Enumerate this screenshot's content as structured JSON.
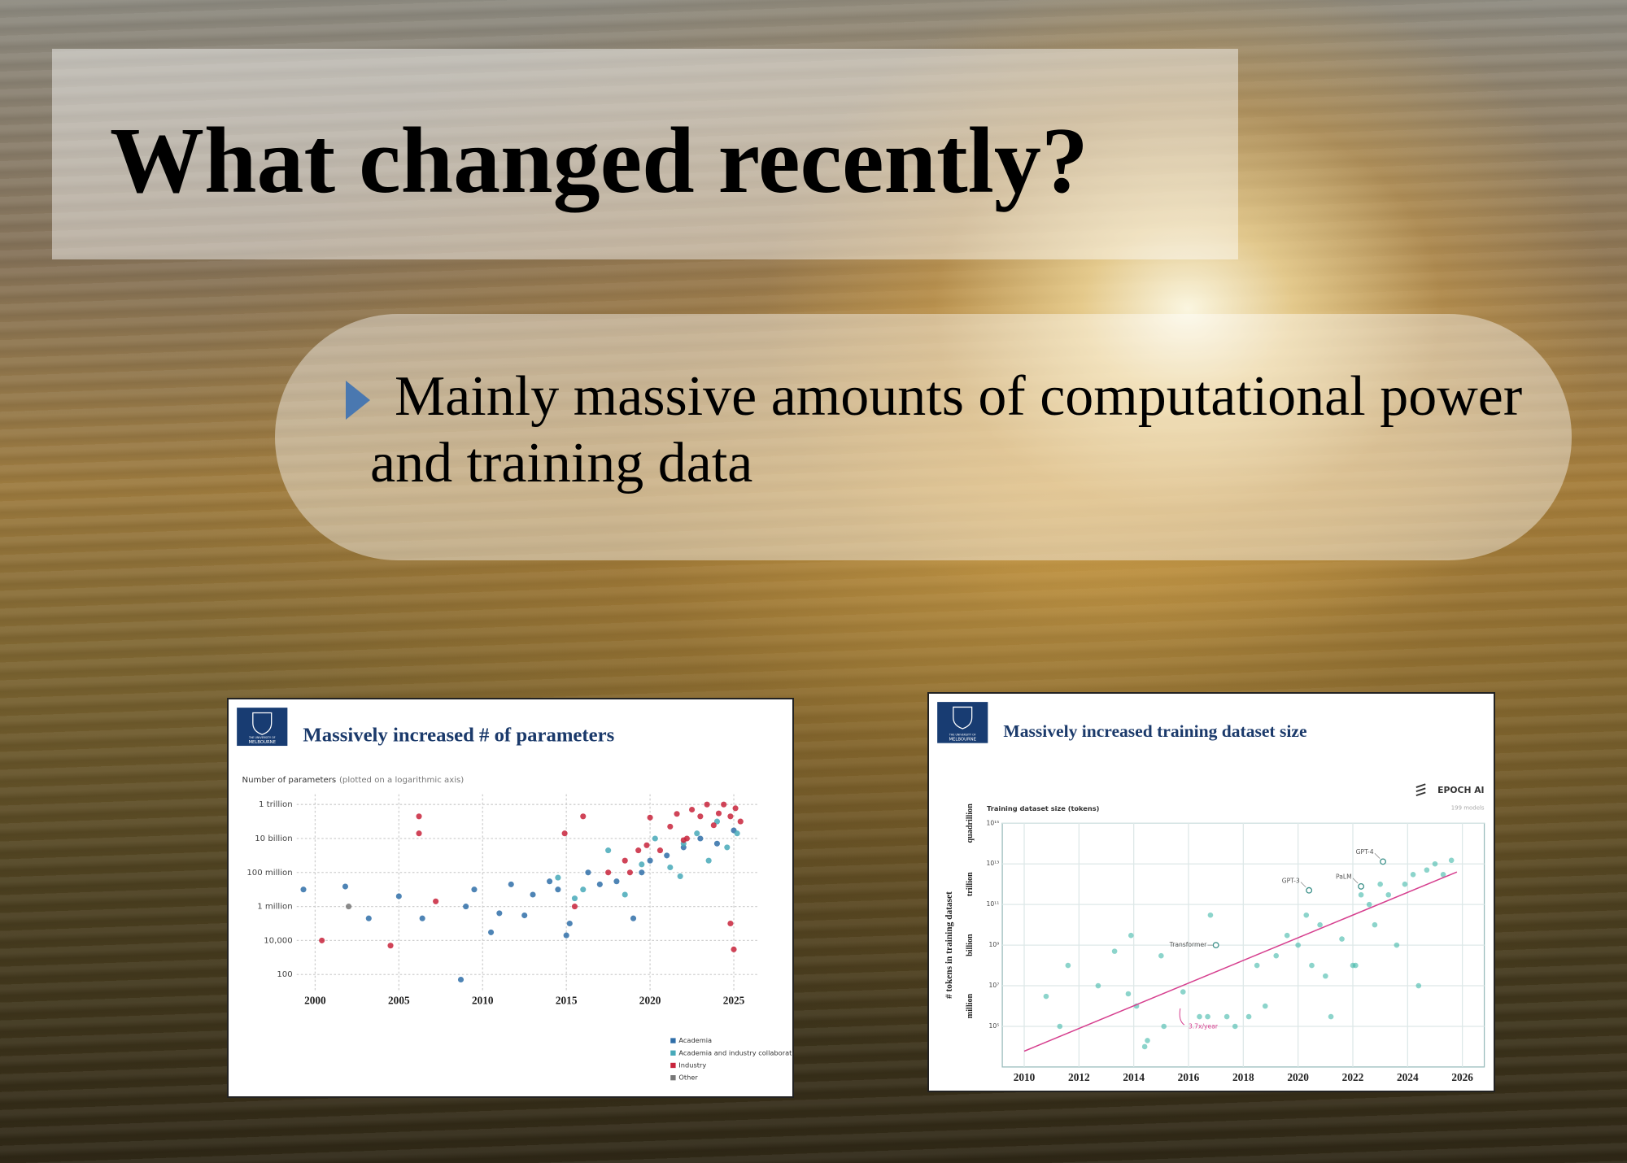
{
  "slide": {
    "title": "What changed recently?",
    "bullet": "Mainly massive amounts of computational power and training data"
  },
  "chart_data": [
    {
      "type": "scatter",
      "logo": [
        "THE UNIVERSITY OF",
        "MELBOURNE"
      ],
      "title": "Massively increased # of parameters",
      "subtitle": "Number of parameters",
      "subtitle_note": "(plotted on a logarithmic axis)",
      "log_y": true,
      "grid": true,
      "legend": "bottom-right",
      "xlim": [
        1998.9,
        2026.4
      ],
      "xticks": [
        2000,
        2005,
        2010,
        2015,
        2020,
        2025
      ],
      "ylim": [
        12,
        4000000000000.0
      ],
      "yticks": [
        100,
        {
          "value": 10000,
          "label": "10,000"
        },
        {
          "value": 1000000,
          "label": "1 million"
        },
        {
          "value": 100000000,
          "label": "100 million"
        },
        {
          "value": 10000000000,
          "label": "10 billion"
        },
        {
          "value": 1000000000000,
          "label": "1 trillion"
        }
      ],
      "series": [
        {
          "name": "Academia",
          "color": "#2f6ea8",
          "x": [
            1999.3,
            2001.8,
            2003.2,
            2005,
            2006.4,
            2008.7,
            2009,
            2009.5,
            2010.5,
            2011,
            2011.7,
            2012.5,
            2013,
            2014,
            2014.5,
            2015,
            2015.2,
            2016.3,
            2017,
            2018,
            2019,
            2019.5,
            2020,
            2021,
            2022,
            2023,
            2024,
            2025
          ],
          "values": [
            10000000.0,
            15000000.0,
            200000.0,
            4000000.0,
            200000.0,
            50,
            1000000.0,
            10000000.0,
            30000.0,
            400000.0,
            20000000.0,
            300000.0,
            5000000.0,
            30000000.0,
            10000000.0,
            20000.0,
            100000.0,
            100000000.0,
            20000000.0,
            30000000.0,
            200000.0,
            100000000.0,
            500000000.0,
            1000000000.0,
            3000000000.0,
            10000000000.0,
            5000000000.0,
            30000000000.0
          ]
        },
        {
          "name": "Academia and industry collaboration",
          "color": "#47a9b9",
          "x": [
            2014.5,
            2015.5,
            2016,
            2017.5,
            2018.5,
            2019.5,
            2020.3,
            2021.2,
            2021.8,
            2022,
            2022.8,
            2023.5,
            2024,
            2024.6,
            2025.2
          ],
          "values": [
            50000000.0,
            3000000.0,
            10000000.0,
            2000000000.0,
            5000000.0,
            300000000.0,
            10000000000.0,
            200000000.0,
            60000000.0,
            5000000000.0,
            20000000000.0,
            500000000.0,
            100000000000.0,
            3000000000.0,
            20000000000.0
          ]
        },
        {
          "name": "Industry",
          "color": "#c8233b",
          "x": [
            2000.4,
            2004.5,
            2006.2,
            2006.2,
            2007.2,
            2014.9,
            2015.5,
            2016,
            2017.5,
            2018.5,
            2018.8,
            2019.3,
            2019.8,
            2020,
            2020.6,
            2021.2,
            2021.6,
            2022,
            2022.2,
            2022.5,
            2023,
            2023.4,
            2023.8,
            2024.1,
            2024.4,
            2024.8,
            2024.8,
            2025,
            2025.1,
            2025.4
          ],
          "values": [
            10000.0,
            5000.0,
            200000000000.0,
            20000000000.0,
            2000000.0,
            20000000000.0,
            1000000.0,
            200000000000.0,
            100000000.0,
            500000000.0,
            100000000.0,
            2000000000.0,
            4000000000.0,
            170000000000.0,
            2000000000.0,
            50000000000.0,
            280000000000.0,
            8000000000.0,
            10000000000.0,
            500000000000.0,
            200000000000.0,
            1000000000000.0,
            60000000000.0,
            300000000000.0,
            1000000000000.0,
            200000000000.0,
            100000.0,
            3000.0,
            600000000000.0,
            100000000000.0
          ]
        },
        {
          "name": "Other",
          "color": "#777777",
          "x": [
            2002
          ],
          "values": [
            1000000.0
          ]
        }
      ]
    },
    {
      "type": "scatter",
      "logo": [
        "THE UNIVERSITY OF",
        "MELBOURNE"
      ],
      "title": "Massively increased training dataset size",
      "brand": "EPOCH AI",
      "note": "199 models",
      "subtitle": "Training dataset size (tokens)",
      "ylabel": "# tokens in training dataset",
      "log_y": true,
      "grid": true,
      "xlim": [
        2009.2,
        2026.8
      ],
      "xticks": [
        2010,
        2012,
        2014,
        2016,
        2018,
        2020,
        2022,
        2024,
        2026
      ],
      "ylim": [
        1000,
        1000000000000000.0
      ],
      "yticks": [
        {
          "value": 100000.0,
          "label": "10⁵"
        },
        {
          "value": 10000000.0,
          "label": "10⁷"
        },
        {
          "value": 1000000000.0,
          "label": "10⁹"
        },
        {
          "value": 100000000000.0,
          "label": "10¹¹"
        },
        {
          "value": 10000000000000.0,
          "label": "10¹³"
        },
        {
          "value": 1000000000000000.0,
          "label": "10¹⁵"
        }
      ],
      "y_group_labels": [
        {
          "value": 1000000.0,
          "label": "million"
        },
        {
          "value": 1000000000.0,
          "label": "billion"
        },
        {
          "value": 1000000000000.0,
          "label": "trillion"
        },
        {
          "value": 1000000000000000.0,
          "label": "quadrillion"
        }
      ],
      "series": [
        {
          "color": "#3fb8a8",
          "x": [
            2010.8,
            2011.3,
            2011.6,
            2012.7,
            2013.3,
            2013.8,
            2013.9,
            2014.1,
            2014.4,
            2014.5,
            2015,
            2015.1,
            2015.8,
            2016.4,
            2016.7,
            2016.8,
            2017.4,
            2017.7,
            2018.2,
            2018.5,
            2018.8,
            2019.2,
            2019.6,
            2020,
            2020.3,
            2020.5,
            2020.8,
            2021,
            2021.2,
            2021.6,
            2022,
            2022.1,
            2022.3,
            2022.6,
            2022.8,
            2023,
            2023.3,
            2023.6,
            2023.9,
            2024.2,
            2024.4,
            2024.7,
            2025,
            2025.3,
            2025.6
          ],
          "values": [
            3000000.0,
            100000.0,
            100000000.0,
            10000000.0,
            500000000.0,
            4000000.0,
            3000000000.0,
            1000000.0,
            10000.0,
            20000.0,
            300000000.0,
            100000.0,
            5000000.0,
            300000.0,
            300000.0,
            30000000000.0,
            300000.0,
            100000.0,
            300000.0,
            100000000.0,
            1000000.0,
            300000000.0,
            3000000000.0,
            1000000000.0,
            30000000000.0,
            100000000.0,
            10000000000.0,
            30000000.0,
            300000.0,
            2000000000.0,
            100000000.0,
            100000000.0,
            300000000000.0,
            100000000000.0,
            10000000000.0,
            1000000000000.0,
            300000000000.0,
            1000000000.0,
            1000000000000.0,
            3000000000000.0,
            10000000.0,
            5000000000000.0,
            10000000000000.0,
            3000000000000.0,
            15000000000000.0
          ]
        }
      ],
      "labeled_points": [
        {
          "name": "Transformer",
          "x": 2017,
          "y": 1000000000.0
        },
        {
          "name": "GPT-3",
          "x": 2020.4,
          "y": 500000000000.0
        },
        {
          "name": "PaLM",
          "x": 2022.3,
          "y": 780000000000.0
        },
        {
          "name": "GPT-4",
          "x": 2023.1,
          "y": 13000000000000.0
        }
      ],
      "trend": {
        "label": "3.7x/year",
        "color": "#d6408f",
        "x": [
          2010,
          2025.8
        ],
        "values": [
          6000,
          4000000000000.0
        ]
      }
    }
  ]
}
